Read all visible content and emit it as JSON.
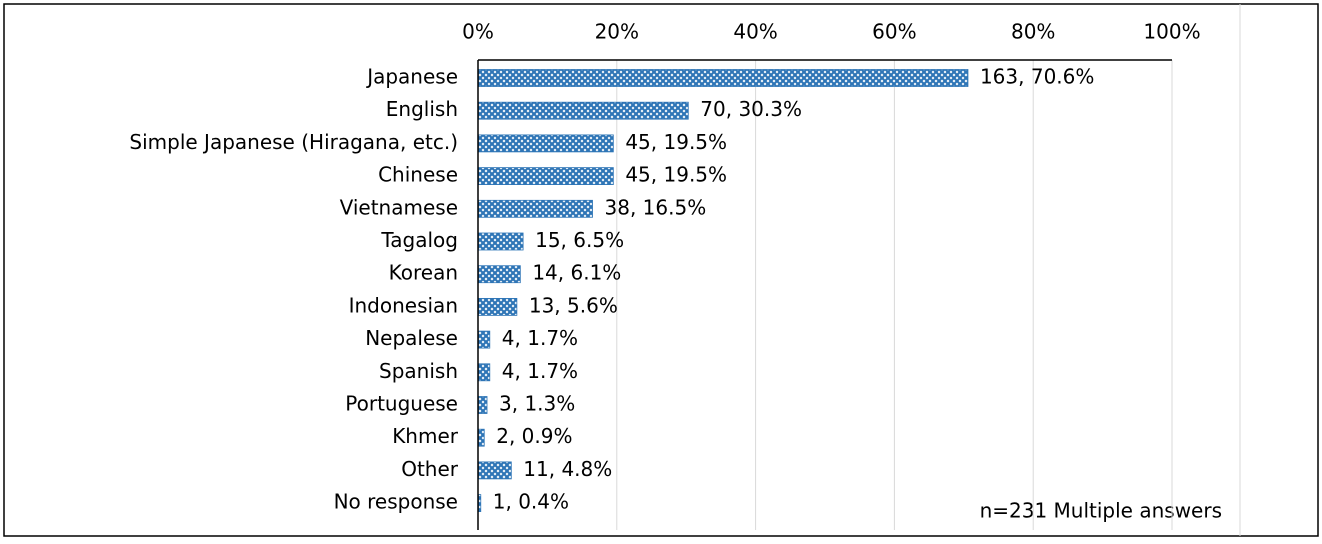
{
  "chart_data": {
    "type": "barh",
    "categories": [
      "Japanese",
      "English",
      "Simple Japanese (Hiragana, etc.)",
      "Chinese",
      "Vietnamese",
      "Tagalog",
      "Korean",
      "Indonesian",
      "Nepalese",
      "Spanish",
      "Portuguese",
      "Khmer",
      "Other",
      "No response"
    ],
    "values": [
      70.6,
      30.3,
      19.5,
      19.5,
      16.5,
      6.5,
      6.1,
      5.6,
      1.7,
      1.7,
      1.3,
      0.9,
      4.8,
      0.4
    ],
    "value_labels": [
      "163, 70.6%",
      "70, 30.3%",
      "45, 19.5%",
      "45, 19.5%",
      "38, 16.5%",
      "15, 6.5%",
      "14, 6.1%",
      "13, 5.6%",
      "4, 1.7%",
      "4, 1.7%",
      "3, 1.3%",
      "2, 0.9%",
      "11, 4.8%",
      "1, 0.4%"
    ],
    "color": "#2e75b6",
    "xlim": [
      0,
      100
    ],
    "xticks": [
      {
        "value": 0,
        "label": "0%"
      },
      {
        "value": 20,
        "label": "20%"
      },
      {
        "value": 40,
        "label": "40%"
      },
      {
        "value": 60,
        "label": "60%"
      },
      {
        "value": 80,
        "label": "80%"
      },
      {
        "value": 100,
        "label": "100%"
      }
    ],
    "grid": true,
    "annotation": "n=231 Multiple answers"
  }
}
